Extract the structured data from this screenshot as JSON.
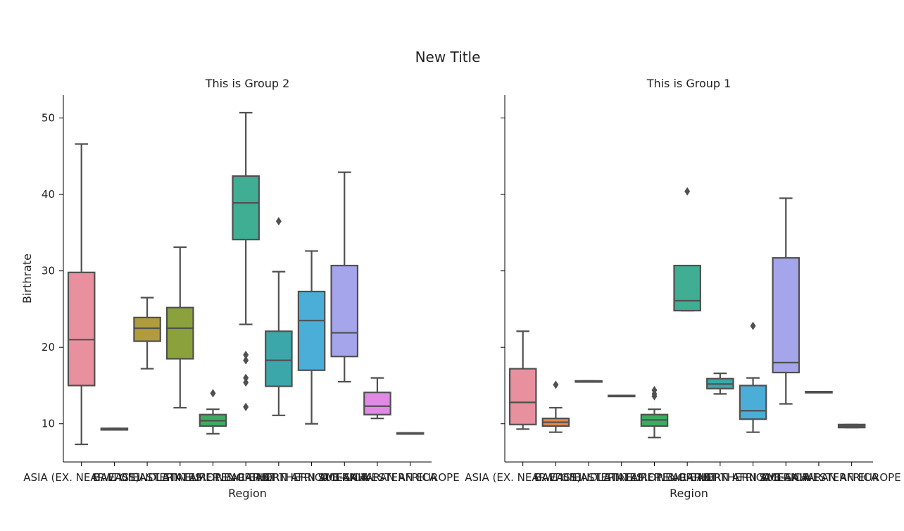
{
  "title": "New Title",
  "colors": {
    "box_edge": "#505050",
    "palette": [
      "#e8909e",
      "#e6864a",
      "#b09c3c",
      "#8ba23c",
      "#3cad5f",
      "#3fae93",
      "#3ca7ab",
      "#4aaed9",
      "#a5a5ec",
      "#e08ae6",
      "#e680b2"
    ]
  },
  "chart_data": [
    {
      "type": "box",
      "title": "This is Group 2",
      "xlabel": "Region",
      "ylabel": "Birthrate",
      "ylim": [
        5,
        53
      ],
      "yticks": [
        10,
        20,
        30,
        40,
        50
      ],
      "categories": [
        "ASIA (EX. NEAR EAST)",
        "BALTICS",
        "C.W. OF IND. STATES",
        "EASTERN EUROPE",
        "LATIN AMER. & CARIB",
        "NEAR EAST",
        "NORTHERN AFRICA",
        "NORTHERN AMERICA",
        "OCEANIA",
        "SUB-SAHARAN AFRICA",
        "WESTERN EUROPE"
      ],
      "tick_labels": [
        "ASIA (EX. NEAR EAST)",
        "BALTICS",
        "C.W. OF IND. STATES",
        "EASTERN EUROPE",
        "LATIN AMER. & CARIB",
        "NEAR EAST",
        "NORTHERN AFRICA",
        "NORTHERN AMERICA",
        "OCEANIA",
        "SUB-SAHARAN AFRICA",
        "WESTERN EUROPE"
      ],
      "boxes": [
        {
          "category": "ASIA (EX. NEAR EAST)",
          "color_index": 0,
          "min": 7.3,
          "q1": 15.0,
          "median": 21.0,
          "q3": 29.8,
          "max": 46.6,
          "fliers": []
        },
        {
          "category": "BALTICS",
          "color_index": 1,
          "min": 9.2,
          "q1": 9.2,
          "median": 9.3,
          "q3": 9.4,
          "max": 9.4,
          "fliers": []
        },
        {
          "category": "C.W. OF IND. STATES",
          "color_index": 2,
          "min": 17.2,
          "q1": 20.8,
          "median": 22.5,
          "q3": 23.9,
          "max": 26.5,
          "fliers": []
        },
        {
          "category": "EASTERN EUROPE",
          "color_index": 3,
          "min": 12.1,
          "q1": 18.5,
          "median": 22.5,
          "q3": 25.2,
          "max": 33.1,
          "fliers": []
        },
        {
          "category": "LATIN AMER. & CARIB",
          "color_index": 4,
          "min": 8.7,
          "q1": 9.7,
          "median": 10.4,
          "q3": 11.2,
          "max": 11.9,
          "fliers": [
            14.0
          ]
        },
        {
          "category": "NEAR EAST",
          "color_index": 5,
          "min": 23.0,
          "q1": 34.1,
          "median": 38.9,
          "q3": 42.4,
          "max": 50.7,
          "fliers": [
            19.0,
            18.3,
            16.0,
            15.4,
            12.2
          ]
        },
        {
          "category": "NORTHERN AFRICA",
          "color_index": 6,
          "min": 11.1,
          "q1": 14.9,
          "median": 18.3,
          "q3": 22.1,
          "max": 29.9,
          "fliers": [
            36.5
          ]
        },
        {
          "category": "NORTHERN AMERICA",
          "color_index": 7,
          "min": 10.0,
          "q1": 17.0,
          "median": 23.5,
          "q3": 27.3,
          "max": 32.6,
          "fliers": []
        },
        {
          "category": "OCEANIA",
          "color_index": 8,
          "min": 15.5,
          "q1": 18.8,
          "median": 21.9,
          "q3": 30.7,
          "max": 42.9,
          "fliers": []
        },
        {
          "category": "SUB-SAHARAN AFRICA",
          "color_index": 9,
          "min": 10.7,
          "q1": 11.2,
          "median": 12.3,
          "q3": 14.1,
          "max": 16.0,
          "fliers": []
        },
        {
          "category": "WESTERN EUROPE",
          "color_index": 10,
          "min": 8.8,
          "q1": 8.8,
          "median": 8.8,
          "q3": 8.8,
          "max": 8.8,
          "fliers": []
        }
      ]
    },
    {
      "type": "box",
      "title": "This is Group 1",
      "xlabel": "Region",
      "ylabel": "",
      "ylim": [
        5,
        53
      ],
      "yticks": [
        10,
        20,
        30,
        40,
        50
      ],
      "categories": [
        "ASIA (EX. NEAR EAST)",
        "BALTICS",
        "C.W. OF IND. STATES",
        "EASTERN EUROPE",
        "LATIN AMER. & CARIB",
        "NEAR EAST",
        "NORTHERN AFRICA",
        "NORTHERN AMERICA",
        "OCEANIA",
        "SUB-SAHARAN AFRICA",
        "WESTERN EUROPE"
      ],
      "tick_labels": [
        "ASIA (EX. NEAR EAST)",
        "BALTICS",
        "C.W. OF IND. STATES",
        "EASTERN EUROPE",
        "LATIN AMER. & CARIB",
        "NEAR EAST",
        "NORTHERN AFRICA",
        "NORTHERN AMERICA",
        "OCEANIA",
        "SUB-SAHARAN AFRICA",
        "WESTERN EUROPE"
      ],
      "boxes": [
        {
          "category": "ASIA (EX. NEAR EAST)",
          "color_index": 0,
          "min": 9.3,
          "q1": 9.9,
          "median": 12.8,
          "q3": 17.2,
          "max": 22.1,
          "fliers": []
        },
        {
          "category": "BALTICS",
          "color_index": 1,
          "min": 8.9,
          "q1": 9.7,
          "median": 10.2,
          "q3": 10.7,
          "max": 12.1,
          "fliers": [
            15.1
          ]
        },
        {
          "category": "C.W. OF IND. STATES",
          "color_index": 2,
          "min": 15.6,
          "q1": 15.6,
          "median": 15.6,
          "q3": 15.6,
          "max": 15.6,
          "fliers": []
        },
        {
          "category": "EASTERN EUROPE",
          "color_index": 3,
          "min": 13.7,
          "q1": 13.7,
          "median": 13.7,
          "q3": 13.7,
          "max": 13.7,
          "fliers": []
        },
        {
          "category": "LATIN AMER. & CARIB",
          "color_index": 4,
          "min": 8.2,
          "q1": 9.7,
          "median": 10.5,
          "q3": 11.2,
          "max": 11.9,
          "fliers": [
            14.4,
            13.9,
            13.6
          ]
        },
        {
          "category": "NEAR EAST",
          "color_index": 5,
          "min": 24.8,
          "q1": 24.8,
          "median": 26.1,
          "q3": 30.7,
          "max": 30.7,
          "fliers": [
            40.4
          ]
        },
        {
          "category": "NORTHERN AFRICA",
          "color_index": 6,
          "min": 13.9,
          "q1": 14.6,
          "median": 15.2,
          "q3": 15.9,
          "max": 16.6,
          "fliers": []
        },
        {
          "category": "NORTHERN AMERICA",
          "color_index": 7,
          "min": 8.9,
          "q1": 10.6,
          "median": 11.7,
          "q3": 15.0,
          "max": 16.0,
          "fliers": [
            22.8
          ]
        },
        {
          "category": "OCEANIA",
          "color_index": 8,
          "min": 12.6,
          "q1": 16.7,
          "median": 18.0,
          "q3": 31.7,
          "max": 39.5,
          "fliers": []
        },
        {
          "category": "SUB-SAHARAN AFRICA",
          "color_index": 9,
          "min": 14.2,
          "q1": 14.2,
          "median": 14.2,
          "q3": 14.2,
          "max": 14.2,
          "fliers": []
        },
        {
          "category": "WESTERN EUROPE",
          "color_index": 10,
          "min": 9.5,
          "q1": 9.5,
          "median": 9.7,
          "q3": 9.9,
          "max": 9.9,
          "fliers": []
        }
      ]
    }
  ]
}
